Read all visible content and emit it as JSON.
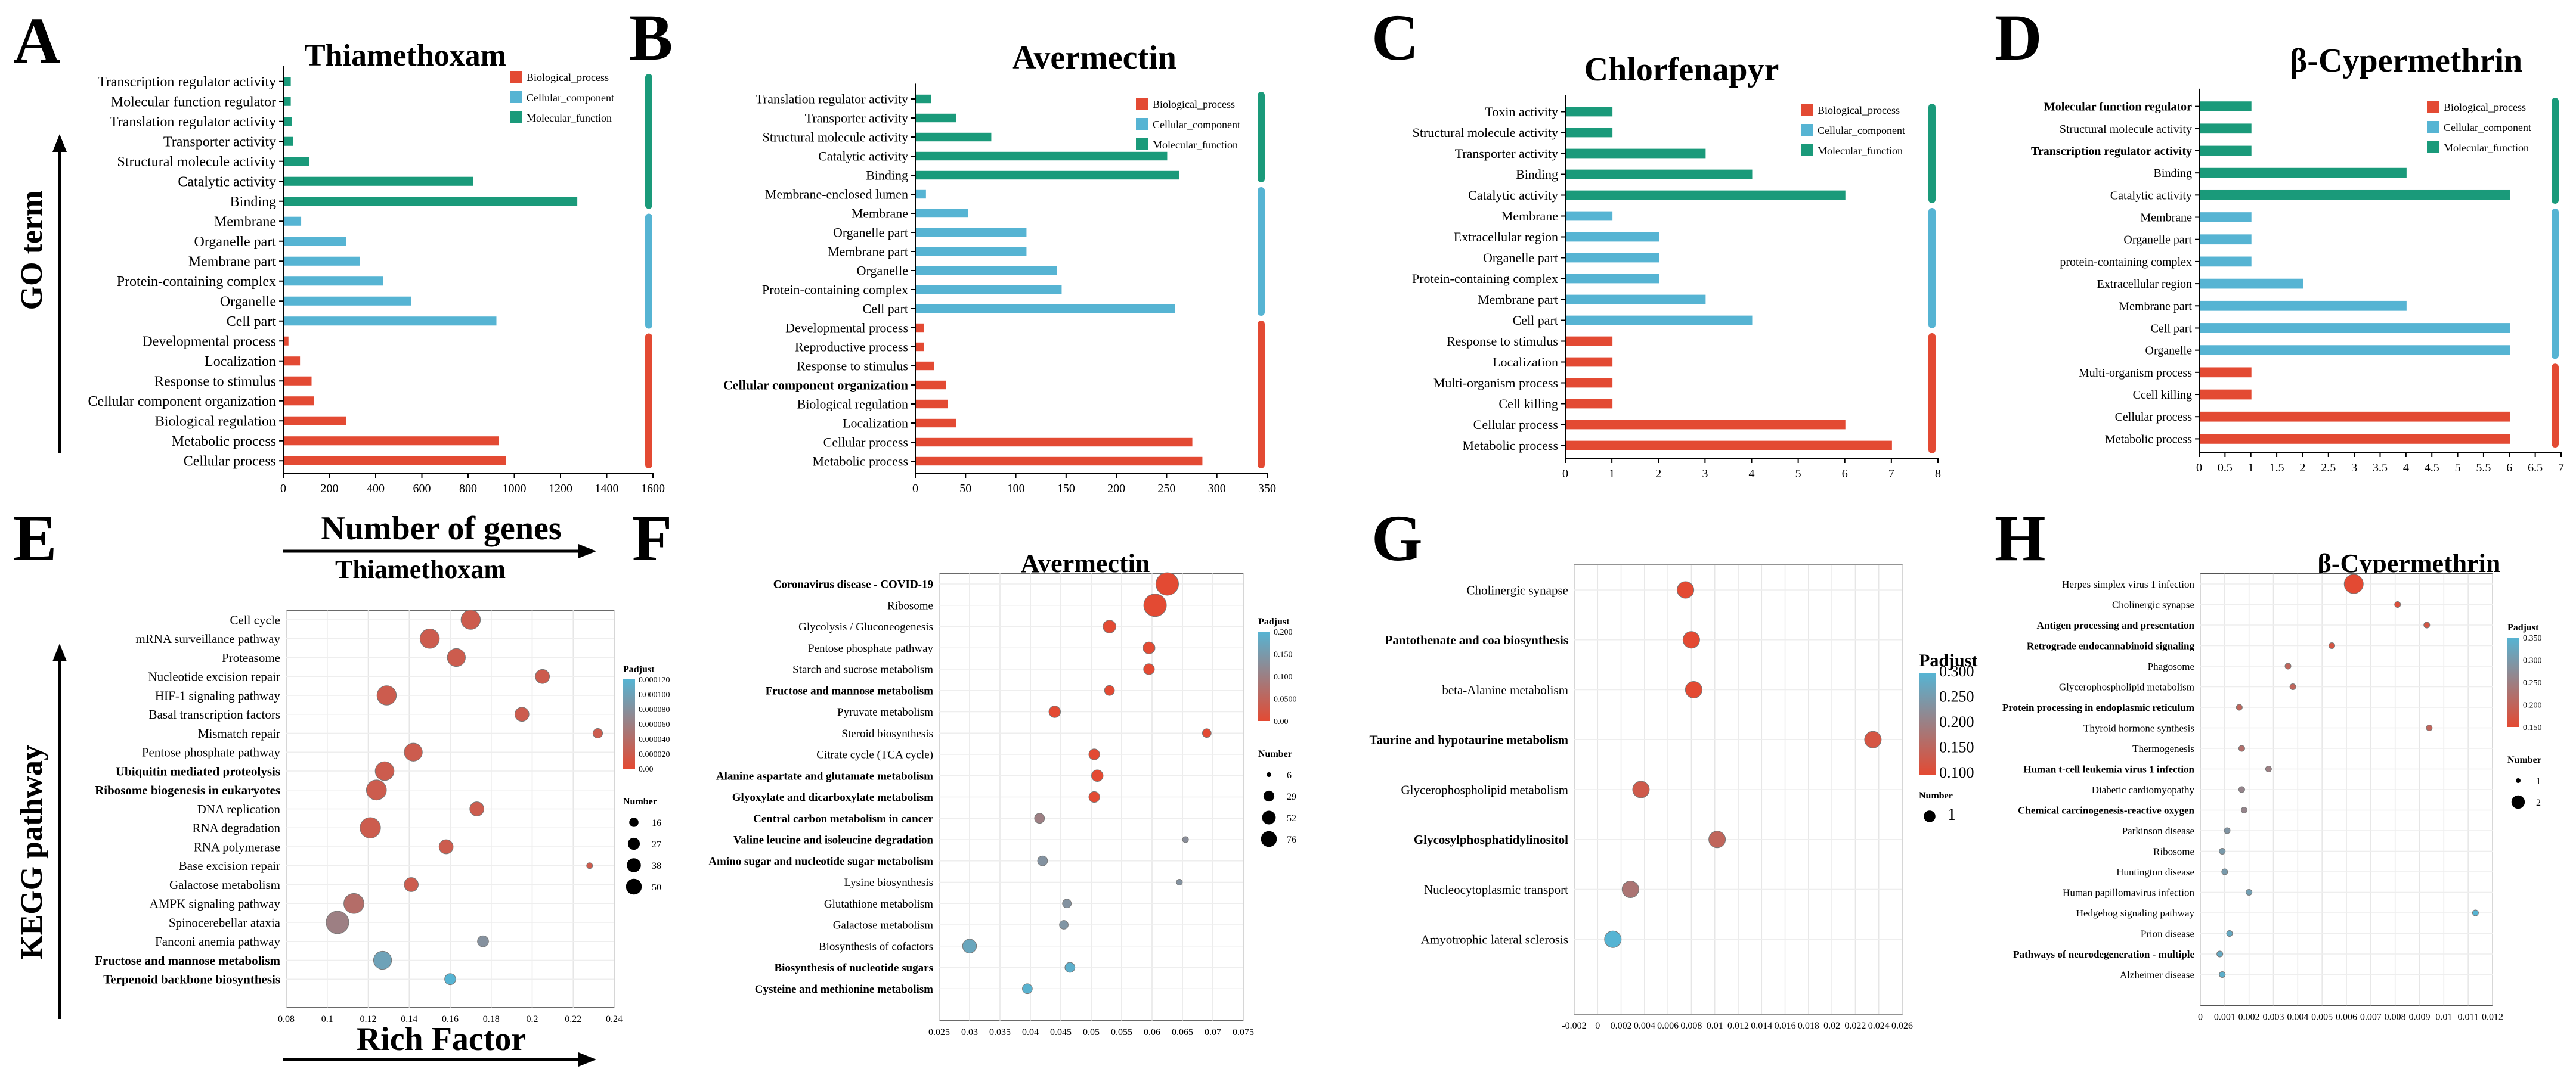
{
  "colors": {
    "bp": "#e34a33",
    "cc": "#56b4d3",
    "mf": "#1a9a7a",
    "kegg_high": "#e34a33",
    "kegg_low": "#56b4d3",
    "axis": "#000000"
  },
  "go_common": {
    "legend": [
      "Biological_process",
      "Cellular_component",
      "Molecular_function"
    ],
    "ylabel": "GO term",
    "xlabel": "Number of genes"
  },
  "kegg_common": {
    "ylabel": "KEGG pathway",
    "xlabel": "Rich Factor",
    "legend_padjust": "Padjust",
    "legend_number": "Number"
  },
  "chart_data": [
    {
      "type": "bar",
      "panel": "A",
      "title": "Thiamethoxam",
      "xlim": [
        0,
        1600
      ],
      "xticks": [
        "0",
        "200",
        "400",
        "600",
        "800",
        "1000",
        "1200",
        "1400",
        "1600"
      ],
      "categories": [
        "Transcription regulator activity",
        "Molecular function regulator",
        "Translation regulator activity",
        "Transporter activity",
        "Structural molecule activity",
        "Catalytic activity",
        "Binding",
        "Membrane",
        "Organelle part",
        "Membrane part",
        "Protein-containing complex",
        "Organelle",
        "Cell part",
        "Developmental process",
        "Localization",
        "Response to stimulus",
        "Cellular component organization",
        "Biological regulation",
        "Metabolic process",
        "Cellular process"
      ],
      "values": [
        30,
        30,
        35,
        40,
        110,
        820,
        1270,
        75,
        270,
        330,
        430,
        550,
        920,
        20,
        70,
        120,
        130,
        270,
        930,
        960
      ],
      "groups": [
        "mf",
        "mf",
        "mf",
        "mf",
        "mf",
        "mf",
        "mf",
        "cc",
        "cc",
        "cc",
        "cc",
        "cc",
        "cc",
        "bp",
        "bp",
        "bp",
        "bp",
        "bp",
        "bp",
        "bp"
      ],
      "bold": [
        false,
        false,
        false,
        false,
        false,
        false,
        false,
        false,
        false,
        false,
        false,
        false,
        false,
        false,
        false,
        false,
        false,
        false,
        false,
        false
      ]
    },
    {
      "type": "bar",
      "panel": "B",
      "title": "Avermectin",
      "xlim": [
        0,
        350
      ],
      "xticks": [
        "0",
        "50",
        "100",
        "150",
        "200",
        "250",
        "300",
        "350"
      ],
      "categories": [
        "Translation regulator activity",
        "Transporter activity",
        "Structural molecule activity",
        "Catalytic activity",
        "Binding",
        "Membrane-enclosed lumen",
        "Membrane",
        "Organelle part",
        "Membrane part",
        "Organelle",
        "Protein-containing complex",
        "Cell part",
        "Developmental process",
        "Reproductive process",
        "Response to stimulus",
        "Cellular component organization",
        "Biological regulation",
        "Localization",
        "Cellular process",
        "Metabolic process"
      ],
      "values": [
        15,
        40,
        75,
        250,
        262,
        10,
        52,
        110,
        110,
        140,
        145,
        258,
        8,
        8,
        18,
        30,
        32,
        40,
        275,
        285
      ],
      "groups": [
        "mf",
        "mf",
        "mf",
        "mf",
        "mf",
        "cc",
        "cc",
        "cc",
        "cc",
        "cc",
        "cc",
        "cc",
        "bp",
        "bp",
        "bp",
        "bp",
        "bp",
        "bp",
        "bp",
        "bp"
      ],
      "bold": [
        false,
        false,
        false,
        false,
        false,
        false,
        false,
        false,
        false,
        false,
        false,
        false,
        false,
        false,
        false,
        true,
        false,
        false,
        false,
        false
      ]
    },
    {
      "type": "bar",
      "panel": "C",
      "title": "Chlorfenapyr",
      "xlim": [
        0,
        8
      ],
      "xticks": [
        "0",
        "1",
        "2",
        "3",
        "4",
        "5",
        "6",
        "7",
        "8"
      ],
      "categories": [
        "Toxin activity",
        "Structural molecule activity",
        "Transporter activity",
        "Binding",
        "Catalytic activity",
        "Membrane",
        "Extracellular region",
        "Organelle part",
        "Protein-containing complex",
        "Membrane part",
        "Cell part",
        "Response to stimulus",
        "Localization",
        "Multi-organism process",
        "Cell killing",
        "Cellular process",
        "Metabolic process"
      ],
      "values": [
        1,
        1,
        3,
        4,
        6,
        1,
        2,
        2,
        2,
        3,
        4,
        1,
        1,
        1,
        1,
        6,
        7
      ],
      "groups": [
        "mf",
        "mf",
        "mf",
        "mf",
        "mf",
        "cc",
        "cc",
        "cc",
        "cc",
        "cc",
        "cc",
        "bp",
        "bp",
        "bp",
        "bp",
        "bp",
        "bp"
      ],
      "bold": [
        false,
        false,
        false,
        false,
        false,
        false,
        false,
        false,
        false,
        false,
        false,
        false,
        false,
        false,
        false,
        false,
        false
      ]
    },
    {
      "type": "bar",
      "panel": "D",
      "title": "β-Cypermethrin",
      "xlim": [
        0,
        7
      ],
      "xticks": [
        "0",
        "0.5",
        "1",
        "1.5",
        "2",
        "2.5",
        "3",
        "3.5",
        "4",
        "4.5",
        "5",
        "5.5",
        "6",
        "6.5",
        "7"
      ],
      "categories": [
        "Molecular function regulator",
        "Structural molecule activity",
        "Transcription regulator activity",
        "Binding",
        "Catalytic activity",
        "Membrane",
        "Organelle part",
        "protein-containing complex",
        "Extracellular region",
        "Membrane part",
        "Cell part",
        "Organelle",
        "Multi-organism process",
        "Ccell killing",
        "Cellular process",
        "Metabolic process"
      ],
      "values": [
        1,
        1,
        1,
        4,
        6,
        1,
        1,
        1,
        2,
        4,
        6,
        6,
        1,
        1,
        6,
        6
      ],
      "groups": [
        "mf",
        "mf",
        "mf",
        "mf",
        "mf",
        "cc",
        "cc",
        "cc",
        "cc",
        "cc",
        "cc",
        "cc",
        "bp",
        "bp",
        "bp",
        "bp"
      ],
      "bold": [
        true,
        false,
        true,
        false,
        false,
        false,
        false,
        false,
        false,
        false,
        false,
        false,
        false,
        false,
        false,
        false
      ]
    },
    {
      "type": "scatter",
      "panel": "E",
      "title": "Thiamethoxam",
      "xlim": [
        0.08,
        0.24
      ],
      "xticks": [
        "0.08",
        "0.1",
        "0.12",
        "0.14",
        "0.16",
        "0.18",
        "0.2",
        "0.22",
        "0.24"
      ],
      "categories": [
        "Cell cycle",
        "mRNA surveillance pathway",
        "Proteasome",
        "Nucleotide excision repair",
        "HIF-1 signaling pathway",
        "Basal transcription factors",
        "Mismatch repair",
        "Pentose phosphate pathway",
        "Ubiquitin mediated proteolysis",
        "Ribosome biogenesis in eukaryotes",
        "DNA replication",
        "RNA degradation",
        "RNA polymerase",
        "Base excision repair",
        "Galactose metabolism",
        "AMPK signaling pathway",
        "Spinocerebellar ataxia",
        "Fanconi anemia pathway",
        "Fructose and mannose metabolism",
        "Terpenoid backbone biosynthesis"
      ],
      "x": [
        0.17,
        0.15,
        0.163,
        0.205,
        0.129,
        0.195,
        0.232,
        0.142,
        0.128,
        0.124,
        0.173,
        0.121,
        0.158,
        0.228,
        0.141,
        0.113,
        0.105,
        0.176,
        0.127,
        0.16
      ],
      "size": [
        35,
        35,
        30,
        18,
        35,
        18,
        10,
        30,
        33,
        38,
        18,
        40,
        18,
        8,
        18,
        38,
        50,
        12,
        30,
        12
      ],
      "padj": [
        2e-05,
        2e-05,
        2e-05,
        2e-05,
        2e-05,
        2e-05,
        2e-05,
        2e-05,
        2e-05,
        2e-05,
        2e-05,
        2e-05,
        2e-05,
        2e-05,
        2e-05,
        4e-05,
        6e-05,
        8e-05,
        0.0001,
        0.00012
      ],
      "bold": [
        false,
        false,
        false,
        false,
        false,
        false,
        false,
        false,
        true,
        true,
        false,
        false,
        false,
        false,
        false,
        false,
        false,
        false,
        true,
        true
      ],
      "legend_padj_ticks": [
        "0.000120",
        "0.000100",
        "0.000080",
        "0.000060",
        "0.000040",
        "0.000020",
        "0.00"
      ],
      "legend_size_labels": [
        "16",
        "27",
        "38",
        "50"
      ],
      "legend_size_values": [
        16,
        27,
        38,
        50
      ],
      "padj_range": [
        0,
        0.00012
      ],
      "size_range": [
        8,
        50
      ]
    },
    {
      "type": "scatter",
      "panel": "F",
      "title": "Avermectin",
      "xlim": [
        0.025,
        0.075
      ],
      "xticks": [
        "0.025",
        "0.03",
        "0.035",
        "0.04",
        "0.045",
        "0.05",
        "0.055",
        "0.06",
        "0.065",
        "0.07",
        "0.075"
      ],
      "categories": [
        "Coronavirus disease - COVID-19",
        "Ribosome",
        "Glycolysis / Gluconeogenesis",
        "Pentose phosphate pathway",
        "Starch and sucrose metabolism",
        "Fructose and mannose metabolism",
        "Pyruvate metabolism",
        "Steroid biosynthesis",
        "Citrate cycle (TCA cycle)",
        "Alanine aspartate and glutamate metabolism",
        "Glyoxylate and dicarboxylate metabolism",
        "Central carbon metabolism in cancer",
        "Valine leucine and isoleucine degradation",
        "Amino sugar and nucleotide sugar metabolism",
        "Lysine biosynthesis",
        "Glutathione metabolism",
        "Galactose metabolism",
        "Biosynthesis of cofactors",
        "Biosynthesis of nucleotide sugars",
        "Cysteine and methionine metabolism"
      ],
      "x": [
        0.0625,
        0.0605,
        0.053,
        0.0595,
        0.0595,
        0.053,
        0.044,
        0.069,
        0.0505,
        0.051,
        0.0505,
        0.0415,
        0.0655,
        0.042,
        0.0645,
        0.046,
        0.0455,
        0.03,
        0.0465,
        0.0395
      ],
      "size": [
        76,
        76,
        18,
        15,
        12,
        10,
        14,
        8,
        12,
        14,
        12,
        10,
        6,
        10,
        6,
        8,
        8,
        22,
        10,
        10
      ],
      "padj": [
        0.0,
        0.0,
        0.0,
        0.0,
        0.0,
        0.0,
        0.0,
        0.0,
        0.0,
        0.0,
        0.0,
        0.11,
        0.14,
        0.15,
        0.15,
        0.15,
        0.155,
        0.19,
        0.21,
        0.215
      ],
      "bold": [
        true,
        false,
        false,
        false,
        false,
        true,
        false,
        false,
        false,
        true,
        true,
        true,
        true,
        true,
        false,
        false,
        false,
        false,
        true,
        true
      ],
      "legend_padj_ticks": [
        "0.200",
        "0.150",
        "0.100",
        "0.0500",
        "0.00"
      ],
      "legend_size_labels": [
        "6",
        "29",
        "52",
        "76"
      ],
      "legend_size_values": [
        6,
        29,
        52,
        76
      ],
      "padj_range": [
        0,
        0.22
      ],
      "size_range": [
        6,
        76
      ]
    },
    {
      "type": "scatter",
      "panel": "G",
      "title": "Chlorfenapyr",
      "xlim": [
        -0.002,
        0.026
      ],
      "xticks": [
        "-0.002",
        "0",
        "0.002",
        "0.004",
        "0.006",
        "0.008",
        "0.01",
        "0.012",
        "0.014",
        "0.016",
        "0.018",
        "0.02",
        "0.022",
        "0.024",
        "0.026"
      ],
      "categories": [
        "Cholinergic synapse",
        "Pantothenate and coa biosynthesis",
        "beta-Alanine metabolism",
        "Taurine and hypotaurine metabolism",
        "Glycerophospholipid metabolism",
        "Glycosylphosphatidylinositol",
        "Nucleocytoplasmic transport",
        "Amyotrophic lateral sclerosis"
      ],
      "x": [
        0.0075,
        0.008,
        0.0082,
        0.0235,
        0.0037,
        0.0102,
        0.0028,
        0.0013
      ],
      "size": [
        1,
        1,
        1,
        1,
        1,
        1,
        1,
        1
      ],
      "padj": [
        0.1,
        0.1,
        0.1,
        0.12,
        0.13,
        0.15,
        0.18,
        0.3
      ],
      "bold": [
        false,
        true,
        false,
        true,
        false,
        true,
        false,
        false
      ],
      "legend_padj_ticks": [
        "0.300",
        "0.250",
        "0.200",
        "0.150",
        "0.100"
      ],
      "legend_size_labels": [
        "1"
      ],
      "legend_size_values": [
        1
      ],
      "padj_range": [
        0.1,
        0.3
      ],
      "size_range": [
        1,
        1
      ]
    },
    {
      "type": "scatter",
      "panel": "H",
      "title": "β-Cypermethrin",
      "xlim": [
        0,
        0.012
      ],
      "xticks": [
        "0",
        "0.001",
        "0.002",
        "0.003",
        "0.004",
        "0.005",
        "0.006",
        "0.007",
        "0.008",
        "0.009",
        "0.01",
        "0.011",
        "0.012"
      ],
      "categories": [
        "Herpes simplex virus 1 infection",
        "Cholinergic synapse",
        "Antigen processing and presentation",
        "Retrograde endocannabinoid signaling",
        "Phagosome",
        "Glycerophospholipid metabolism",
        "Protein processing in endoplasmic reticulum",
        "Thyroid hormone synthesis",
        "Thermogenesis",
        "Human t-cell leukemia virus 1 infection",
        "Diabetic cardiomyopathy",
        "Chemical carcinogenesis-reactive oxygen",
        "Parkinson disease",
        "Ribosome",
        "Huntington disease",
        "Human papillomavirus infection",
        "Hedgehog signaling pathway",
        "Prion disease",
        "Pathways of neurodegeneration - multiple",
        "Alzheimer disease"
      ],
      "x": [
        0.0063,
        0.0081,
        0.0093,
        0.0054,
        0.0036,
        0.0038,
        0.0016,
        0.0094,
        0.0017,
        0.0028,
        0.0017,
        0.0018,
        0.0011,
        0.0009,
        0.001,
        0.002,
        0.0113,
        0.0012,
        0.0008,
        0.0009
      ],
      "size": [
        2,
        1,
        1,
        1,
        1,
        1,
        1,
        1,
        1,
        1,
        1,
        1,
        1,
        1,
        1,
        1,
        1,
        1,
        1,
        1
      ],
      "padj": [
        0.15,
        0.16,
        0.17,
        0.17,
        0.2,
        0.2,
        0.2,
        0.2,
        0.22,
        0.25,
        0.26,
        0.26,
        0.29,
        0.3,
        0.3,
        0.31,
        0.35,
        0.33,
        0.33,
        0.34
      ],
      "bold": [
        false,
        false,
        true,
        true,
        false,
        false,
        true,
        false,
        false,
        true,
        false,
        true,
        false,
        false,
        false,
        false,
        false,
        false,
        true,
        false
      ],
      "legend_padj_ticks": [
        "0.350",
        "0.300",
        "0.250",
        "0.200",
        "0.150"
      ],
      "legend_size_labels": [
        "1",
        "2"
      ],
      "legend_size_values": [
        1,
        2
      ],
      "padj_range": [
        0.15,
        0.35
      ],
      "size_range": [
        1,
        2
      ]
    }
  ]
}
